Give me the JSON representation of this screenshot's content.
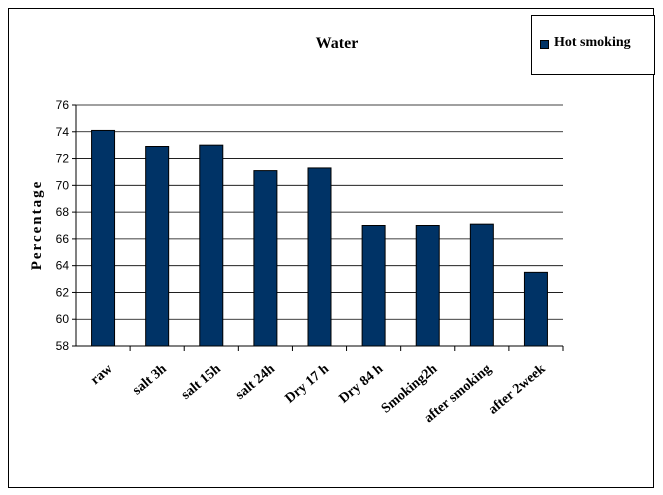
{
  "chart_data": {
    "type": "bar",
    "title": "Water",
    "xlabel": "",
    "ylabel": "Percentage",
    "ylim": [
      58,
      76
    ],
    "yticks": [
      58,
      60,
      62,
      64,
      66,
      68,
      70,
      72,
      74,
      76
    ],
    "grid": true,
    "legend_position": "top-right",
    "categories": [
      "raw",
      "salt 3h",
      "salt 15h",
      "salt 24h",
      "Dry 17 h",
      "Dry 84 h",
      "Smoking2h",
      "after smoking",
      "after 2week"
    ],
    "series": [
      {
        "name": "Hot smoking",
        "color": "#003366",
        "values": [
          74.1,
          72.9,
          73.0,
          71.1,
          71.3,
          67.0,
          67.0,
          67.1,
          63.5
        ]
      }
    ]
  }
}
